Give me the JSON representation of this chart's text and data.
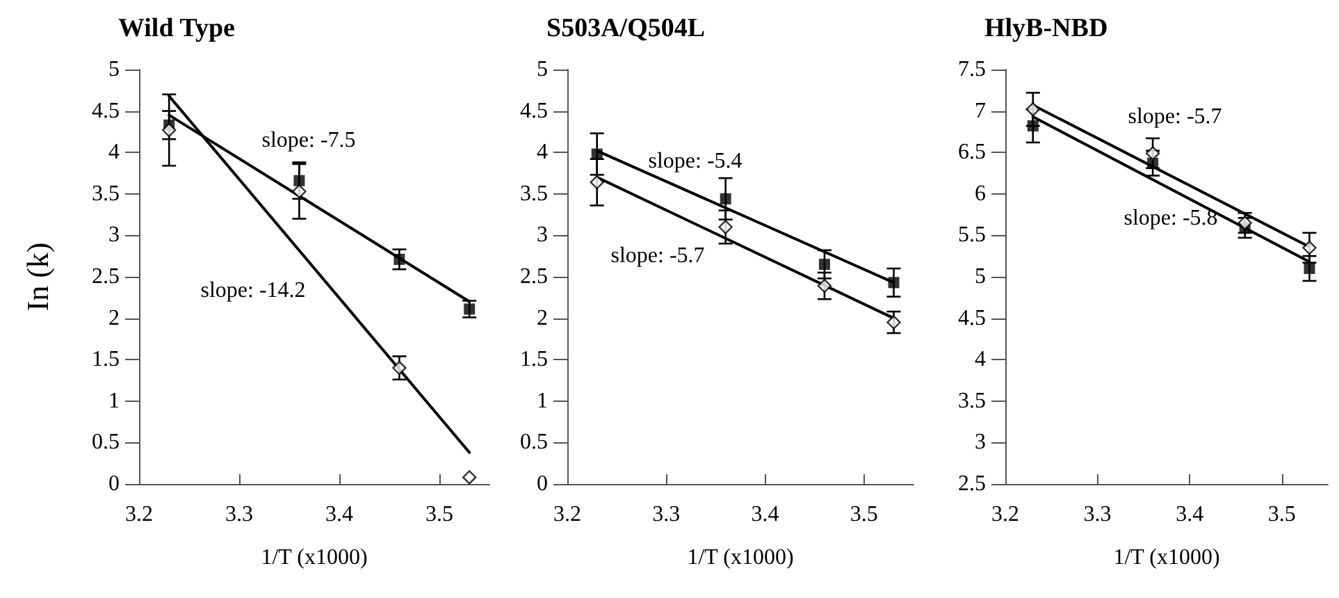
{
  "chart_data": [
    {
      "type": "scatter",
      "title": "Wild Type",
      "xlabel": "1/T (x1000)",
      "ylabel": "In (k)",
      "xlim": [
        3.2,
        3.55
      ],
      "xticks": [
        3.2,
        3.3,
        3.4,
        3.5
      ],
      "ylim": [
        0,
        5
      ],
      "yticks": [
        0,
        0.5,
        1,
        1.5,
        2,
        2.5,
        3,
        3.5,
        4,
        4.5,
        5
      ],
      "grid": false,
      "annotations": [
        "slope: -7.5",
        "slope: -14.2"
      ],
      "series": [
        {
          "type": "scatter",
          "marker": "square",
          "color": "#000000",
          "x": [
            3.23,
            3.36,
            3.46,
            3.53
          ],
          "values": [
            4.33,
            3.66,
            2.71,
            2.11
          ],
          "errors": [
            0.17,
            0.22,
            0.12,
            0.1
          ]
        },
        {
          "type": "scatter",
          "marker": "diamond",
          "color": "#000000",
          "x": [
            3.23,
            3.36,
            3.46,
            3.53
          ],
          "values": [
            4.27,
            3.53,
            1.4,
            0.08
          ],
          "errors": [
            0.43,
            0.33,
            0.14,
            null
          ]
        },
        {
          "type": "line",
          "marker": "none",
          "color": "#000000",
          "x": [
            3.23,
            3.53
          ],
          "values": [
            4.45,
            2.2
          ]
        },
        {
          "type": "line",
          "marker": "none",
          "color": "#000000",
          "x": [
            3.23,
            3.53
          ],
          "values": [
            4.68,
            0.38
          ]
        }
      ]
    },
    {
      "type": "scatter",
      "title": "S503A/Q504L",
      "xlabel": "1/T (x1000)",
      "xlim": [
        3.2,
        3.55
      ],
      "xticks": [
        3.2,
        3.3,
        3.4,
        3.5
      ],
      "ylim": [
        0,
        5
      ],
      "yticks": [
        0,
        0.5,
        1,
        1.5,
        2,
        2.5,
        3,
        3.5,
        4,
        4.5,
        5
      ],
      "grid": false,
      "annotations": [
        "slope: -5.4",
        "slope: -5.7"
      ],
      "series": [
        {
          "type": "scatter",
          "marker": "square",
          "color": "#000000",
          "x": [
            3.23,
            3.36,
            3.46,
            3.53
          ],
          "values": [
            3.98,
            3.44,
            2.65,
            2.43
          ],
          "errors": [
            0.25,
            0.25,
            0.17,
            0.17
          ]
        },
        {
          "type": "scatter",
          "marker": "diamond",
          "color": "#000000",
          "x": [
            3.23,
            3.36,
            3.46,
            3.53
          ],
          "values": [
            3.64,
            3.1,
            2.39,
            1.95
          ],
          "errors": [
            0.28,
            0.2,
            0.16,
            0.13
          ]
        },
        {
          "type": "line",
          "marker": "none",
          "color": "#000000",
          "x": [
            3.23,
            3.53
          ],
          "values": [
            4.02,
            2.43
          ]
        },
        {
          "type": "line",
          "marker": "none",
          "color": "#000000",
          "x": [
            3.23,
            3.53
          ],
          "values": [
            3.7,
            2.0
          ]
        }
      ]
    },
    {
      "type": "scatter",
      "title": "HlyB-NBD",
      "xlabel": "1/T (x1000)",
      "xlim": [
        3.2,
        3.55
      ],
      "xticks": [
        3.2,
        3.3,
        3.4,
        3.5
      ],
      "ylim": [
        2.5,
        7.5
      ],
      "yticks": [
        2.5,
        3,
        3.5,
        4,
        4.5,
        5,
        5.5,
        6,
        6.5,
        7,
        7.5
      ],
      "grid": false,
      "annotations": [
        "slope: -5.7",
        "slope: -5.8"
      ],
      "series": [
        {
          "type": "scatter",
          "marker": "square",
          "color": "#000000",
          "x": [
            3.23,
            3.36,
            3.46,
            3.53
          ],
          "values": [
            6.82,
            6.37,
            5.59,
            5.1
          ],
          "errors": [
            0.2,
            0.15,
            0.12,
            0.15
          ]
        },
        {
          "type": "scatter",
          "marker": "diamond",
          "color": "#000000",
          "x": [
            3.23,
            3.36,
            3.46,
            3.53
          ],
          "values": [
            7.02,
            6.49,
            5.65,
            5.35
          ],
          "errors": [
            0.2,
            0.18,
            0.12,
            0.18
          ]
        },
        {
          "type": "line",
          "marker": "none",
          "color": "#000000",
          "x": [
            3.23,
            3.53
          ],
          "values": [
            7.07,
            5.36
          ]
        },
        {
          "type": "line",
          "marker": "none",
          "color": "#000000",
          "x": [
            3.23,
            3.53
          ],
          "values": [
            6.93,
            5.18
          ]
        }
      ]
    }
  ]
}
